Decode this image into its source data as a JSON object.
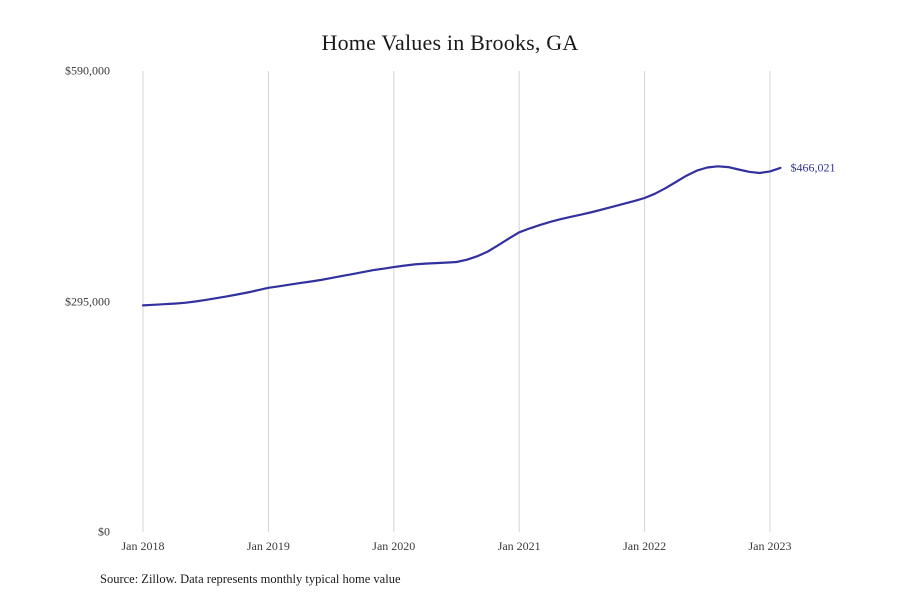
{
  "source": "Source: Zillow. Data represents monthly typical home value",
  "chart_data": {
    "type": "line",
    "title": "Home Values in Brooks, GA",
    "xlabel": "",
    "ylabel": "",
    "ylim": [
      0,
      590000
    ],
    "grid": "vertical-only",
    "legend": "none",
    "line_color": "#32329f",
    "grid_color": "#d4d4d4",
    "end_label": "$466,021",
    "end_value": 466021,
    "y_ticks": [
      {
        "value": 0,
        "label": "$0"
      },
      {
        "value": 295000,
        "label": "$295,000"
      },
      {
        "value": 590000,
        "label": "$590,000"
      }
    ],
    "x_ticks": [
      {
        "index": 0,
        "label": "Jan 2018"
      },
      {
        "index": 12,
        "label": "Jan 2019"
      },
      {
        "index": 24,
        "label": "Jan 2020"
      },
      {
        "index": 36,
        "label": "Jan 2021"
      },
      {
        "index": 48,
        "label": "Jan 2022"
      },
      {
        "index": 60,
        "label": "Jan 2023"
      }
    ],
    "x": [
      "Jan 2018",
      "Feb 2018",
      "Mar 2018",
      "Apr 2018",
      "May 2018",
      "Jun 2018",
      "Jul 2018",
      "Aug 2018",
      "Sep 2018",
      "Oct 2018",
      "Nov 2018",
      "Dec 2018",
      "Jan 2019",
      "Feb 2019",
      "Mar 2019",
      "Apr 2019",
      "May 2019",
      "Jun 2019",
      "Jul 2019",
      "Aug 2019",
      "Sep 2019",
      "Oct 2019",
      "Nov 2019",
      "Dec 2019",
      "Jan 2020",
      "Feb 2020",
      "Mar 2020",
      "Apr 2020",
      "May 2020",
      "Jun 2020",
      "Jul 2020",
      "Aug 2020",
      "Sep 2020",
      "Oct 2020",
      "Nov 2020",
      "Dec 2020",
      "Jan 2021",
      "Feb 2021",
      "Mar 2021",
      "Apr 2021",
      "May 2021",
      "Jun 2021",
      "Jul 2021",
      "Aug 2021",
      "Sep 2021",
      "Oct 2021",
      "Nov 2021",
      "Dec 2021",
      "Jan 2022",
      "Feb 2022",
      "Mar 2022",
      "Apr 2022",
      "May 2022",
      "Jun 2022",
      "Jul 2022",
      "Aug 2022",
      "Sep 2022",
      "Oct 2022",
      "Nov 2022",
      "Dec 2022",
      "Jan 2023",
      "Feb 2023"
    ],
    "values": [
      290000,
      290800,
      291500,
      292300,
      293400,
      295000,
      297000,
      299200,
      301500,
      304000,
      306500,
      309500,
      312500,
      314500,
      316500,
      318500,
      320500,
      322500,
      325000,
      327500,
      330000,
      332500,
      335000,
      337000,
      339000,
      341000,
      342500,
      343500,
      344200,
      344800,
      345500,
      348500,
      353000,
      359000,
      367000,
      375500,
      383500,
      388500,
      393000,
      397000,
      400500,
      403500,
      406500,
      409500,
      413000,
      416500,
      420000,
      423500,
      427500,
      433000,
      440000,
      448000,
      456000,
      462500,
      466500,
      468000,
      467000,
      464000,
      461000,
      459500,
      461500,
      466021
    ]
  }
}
